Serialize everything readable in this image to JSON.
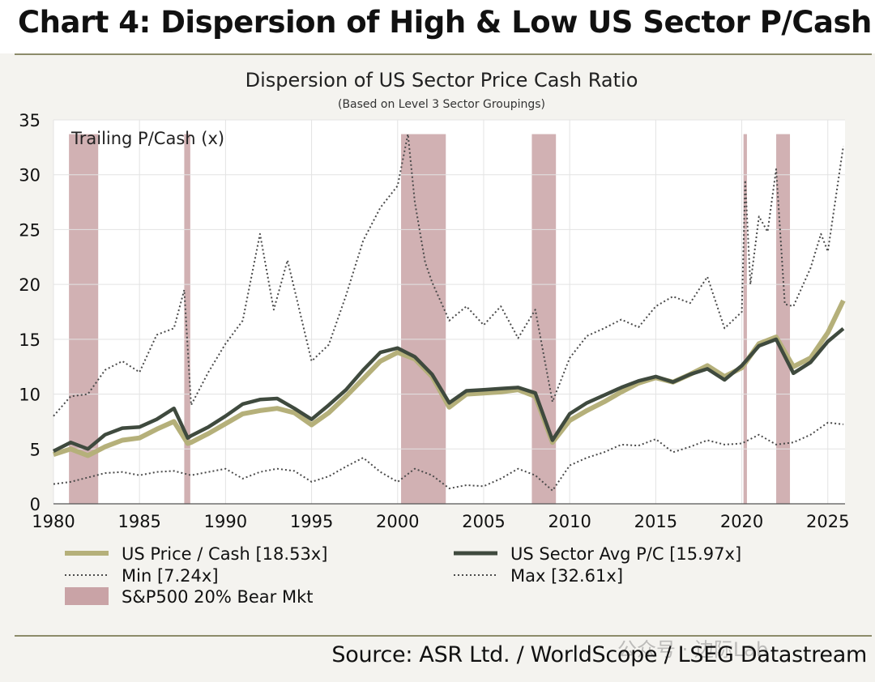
{
  "header": {
    "title": "Chart 4: Dispersion of High & Low US Sector P/Cash"
  },
  "source": "Source: ASR Ltd. / WorldScope / LSEG Datastream",
  "watermark": "公众号 · 边际Lab",
  "colors": {
    "price_cash": "#b5b07a",
    "sector_avg": "#3f4a3e",
    "min": "#4a4a4a",
    "max": "#4a4a4a",
    "bear": "#c9a3a6",
    "rule": "#8c8b6a"
  },
  "chart_data": {
    "type": "line",
    "title": "Dispersion of US Sector Price Cash Ratio",
    "subtitle": "(Based on Level 3 Sector Groupings)",
    "ylabel": "Trailing P/Cash (x)",
    "xlabel": "",
    "xlim": [
      1980,
      2026
    ],
    "ylim": [
      0,
      35
    ],
    "xticks": [
      1980,
      1985,
      1990,
      1995,
      2000,
      2005,
      2010,
      2015,
      2020,
      2025
    ],
    "yticks": [
      0,
      5,
      10,
      15,
      20,
      25,
      30,
      35
    ],
    "grid": true,
    "bear_markets": [
      {
        "start": 1980.9,
        "end": 1982.6
      },
      {
        "start": 1987.6,
        "end": 1987.95
      },
      {
        "start": 2000.2,
        "end": 2002.8
      },
      {
        "start": 2007.8,
        "end": 2009.2
      },
      {
        "start": 2020.1,
        "end": 2020.3
      },
      {
        "start": 2022.0,
        "end": 2022.8
      }
    ],
    "series": [
      {
        "name": "US Price / Cash [18.53x]",
        "key": "price_cash",
        "style": "solid-thick",
        "x": [
          1980,
          1981,
          1982,
          1983,
          1984,
          1985,
          1986,
          1987,
          1987.8,
          1988,
          1989,
          1990,
          1991,
          1992,
          1993,
          1994,
          1995,
          1996,
          1997,
          1998,
          1999,
          2000,
          2001,
          2002,
          2003,
          2004,
          2005,
          2006,
          2007,
          2008,
          2009,
          2010,
          2011,
          2012,
          2013,
          2014,
          2015,
          2016,
          2017,
          2018,
          2019,
          2020,
          2021,
          2022,
          2023,
          2024,
          2025,
          2025.9
        ],
        "values": [
          4.5,
          5.0,
          4.4,
          5.2,
          5.8,
          6.0,
          6.8,
          7.5,
          5.5,
          5.6,
          6.4,
          7.3,
          8.2,
          8.5,
          8.7,
          8.3,
          7.2,
          8.3,
          9.8,
          11.4,
          13.0,
          13.8,
          13.2,
          11.6,
          8.8,
          10.0,
          10.1,
          10.2,
          10.4,
          9.8,
          5.6,
          7.6,
          8.5,
          9.3,
          10.2,
          11.0,
          11.5,
          11.1,
          11.8,
          12.6,
          11.6,
          12.4,
          14.6,
          15.2,
          12.5,
          13.3,
          15.6,
          18.53
        ]
      },
      {
        "name": "US Sector Avg P/C [15.97x]",
        "key": "sector_avg",
        "style": "solid-thick",
        "x": [
          1980,
          1981,
          1982,
          1983,
          1984,
          1985,
          1986,
          1987,
          1987.8,
          1988,
          1989,
          1990,
          1991,
          1992,
          1993,
          1994,
          1995,
          1996,
          1997,
          1998,
          1999,
          2000,
          2001,
          2002,
          2003,
          2004,
          2005,
          2006,
          2007,
          2008,
          2009,
          2010,
          2011,
          2012,
          2013,
          2014,
          2015,
          2016,
          2017,
          2018,
          2019,
          2020,
          2021,
          2022,
          2023,
          2024,
          2025,
          2025.9
        ],
        "values": [
          4.8,
          5.6,
          5.0,
          6.3,
          6.9,
          7.0,
          7.7,
          8.7,
          6.0,
          6.2,
          7.0,
          8.0,
          9.1,
          9.5,
          9.6,
          8.7,
          7.7,
          9.0,
          10.4,
          12.2,
          13.8,
          14.2,
          13.4,
          11.8,
          9.2,
          10.3,
          10.4,
          10.5,
          10.6,
          10.1,
          5.8,
          8.2,
          9.2,
          9.9,
          10.6,
          11.2,
          11.6,
          11.1,
          11.8,
          12.3,
          11.3,
          12.6,
          14.4,
          15.0,
          11.9,
          12.9,
          14.8,
          15.97
        ]
      },
      {
        "name": "Min [7.24x]",
        "key": "min",
        "style": "dotted",
        "x": [
          1980,
          1981,
          1982,
          1983,
          1984,
          1985,
          1986,
          1987,
          1988,
          1989,
          1990,
          1991,
          1992,
          1993,
          1994,
          1995,
          1996,
          1997,
          1998,
          1999,
          2000,
          2001,
          2002,
          2003,
          2004,
          2005,
          2006,
          2007,
          2008,
          2009,
          2010,
          2011,
          2012,
          2013,
          2014,
          2015,
          2016,
          2017,
          2018,
          2019,
          2020,
          2021,
          2022,
          2023,
          2024,
          2025,
          2025.9
        ],
        "values": [
          1.8,
          2.0,
          2.4,
          2.8,
          2.9,
          2.6,
          2.9,
          3.0,
          2.6,
          2.9,
          3.2,
          2.3,
          2.9,
          3.2,
          3.0,
          2.0,
          2.5,
          3.4,
          4.2,
          2.9,
          2.0,
          3.2,
          2.6,
          1.4,
          1.7,
          1.6,
          2.3,
          3.2,
          2.6,
          1.2,
          3.5,
          4.2,
          4.7,
          5.4,
          5.3,
          5.9,
          4.7,
          5.2,
          5.8,
          5.4,
          5.5,
          6.3,
          5.4,
          5.6,
          6.3,
          7.4,
          7.24
        ]
      },
      {
        "name": "Max [32.61x]",
        "key": "max",
        "style": "dotted",
        "x": [
          1980,
          1981,
          1982,
          1983,
          1984,
          1985,
          1986,
          1987,
          1987.6,
          1988,
          1989,
          1990,
          1991,
          1992,
          1992.8,
          1993.6,
          1995,
          1996,
          1997,
          1998,
          1999,
          2000,
          2000.6,
          2001,
          2001.6,
          2002,
          2003,
          2004,
          2005,
          2006,
          2007,
          2008,
          2009,
          2010,
          2011,
          2012,
          2013,
          2014,
          2015,
          2016,
          2017,
          2018,
          2019,
          2020,
          2020.2,
          2020.5,
          2021,
          2021.5,
          2022,
          2022.5,
          2023,
          2024,
          2024.6,
          2025,
          2025.9
        ],
        "values": [
          8.0,
          9.8,
          10.0,
          12.2,
          13.0,
          12.0,
          15.4,
          16.0,
          19.5,
          9.0,
          12.0,
          14.6,
          16.7,
          24.6,
          17.7,
          22.2,
          13.0,
          14.5,
          19.0,
          24.0,
          27.0,
          29.0,
          33.7,
          27.5,
          22.0,
          20.2,
          16.7,
          18.0,
          16.3,
          18.0,
          15.1,
          17.7,
          9.3,
          13.3,
          15.3,
          16.0,
          16.8,
          16.1,
          18.0,
          18.9,
          18.3,
          20.7,
          16.0,
          17.5,
          29.5,
          20.0,
          26.2,
          24.8,
          30.5,
          18.2,
          18.0,
          21.5,
          24.6,
          23.0,
          32.61
        ]
      }
    ],
    "legend": [
      {
        "label": "US Price / Cash [18.53x]",
        "key": "price_cash",
        "style": "solid-thick"
      },
      {
        "label": "US Sector Avg P/C [15.97x]",
        "key": "sector_avg",
        "style": "solid-thick"
      },
      {
        "label": "Min [7.24x]",
        "key": "min",
        "style": "dotted"
      },
      {
        "label": "Max [32.61x]",
        "key": "max",
        "style": "dotted"
      },
      {
        "label": "S&P500 20% Bear Mkt",
        "key": "bear",
        "style": "box"
      }
    ]
  }
}
